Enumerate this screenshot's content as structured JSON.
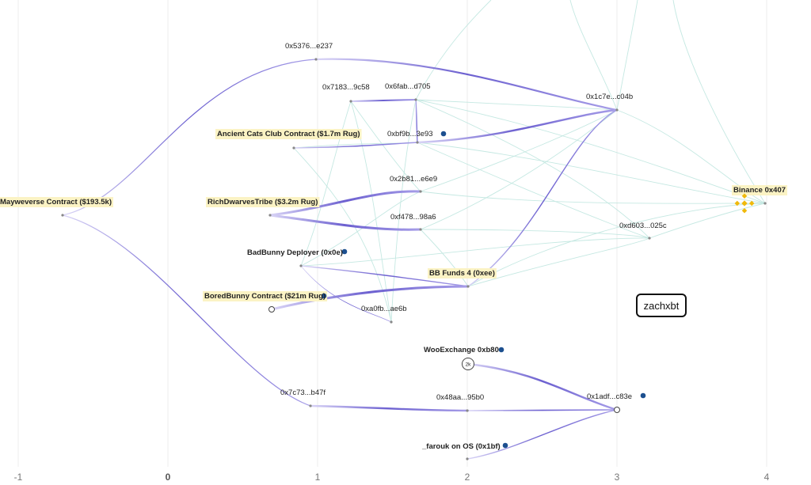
{
  "axis": {
    "ticks": [
      {
        "label": "-1",
        "bold": false
      },
      {
        "label": "0",
        "bold": true
      },
      {
        "label": "1",
        "bold": false
      },
      {
        "label": "2",
        "bold": false
      },
      {
        "label": "3",
        "bold": false
      },
      {
        "label": "4",
        "bold": false
      }
    ]
  },
  "watermark": "zachxbt",
  "colors": {
    "edge_main": "#7b6fd6",
    "edge_faint": "#b8e3dc",
    "highlight": "#fbf3c4",
    "marker": "#1c4f8f",
    "binance": "#f0b90b"
  },
  "nodes": [
    {
      "id": "mayweverse",
      "label": "Mayweverse Contract ($193.5k)",
      "highlight": true,
      "bold": true
    },
    {
      "id": "x5376",
      "label": "0x5376...e237"
    },
    {
      "id": "x7183",
      "label": "0x7183...9c58"
    },
    {
      "id": "x6fab",
      "label": "0x6fab...d705"
    },
    {
      "id": "ancient",
      "label": "Ancient Cats Club Contract ($1.7m Rug)",
      "highlight": true,
      "bold": true
    },
    {
      "id": "xbf9b",
      "label": "0xbf9b...3e93",
      "marker": true
    },
    {
      "id": "x2b81",
      "label": "0x2b81...e6e9"
    },
    {
      "id": "richdw",
      "label": "RichDwarvesTribe ($3.2m Rug)",
      "highlight": true,
      "bold": true
    },
    {
      "id": "xf478",
      "label": "0xf478...98a6"
    },
    {
      "id": "badbunny",
      "label": "BadBunny Deployer (0x0e)",
      "bold": true,
      "marker": true
    },
    {
      "id": "bbfunds",
      "label": "BB Funds 4 (0xee)",
      "highlight": true,
      "bold": true
    },
    {
      "id": "boredbunny",
      "label": "BoredBunny Contract ($21m Rug)",
      "highlight": true,
      "bold": true,
      "marker": true
    },
    {
      "id": "xa0fb",
      "label": "0xa0fb...ae6b"
    },
    {
      "id": "x1c7e",
      "label": "0x1c7e...c04b"
    },
    {
      "id": "xd603",
      "label": "0xd603...025c"
    },
    {
      "id": "binance",
      "label": "Binance 0x407",
      "highlight": true,
      "bold": true
    },
    {
      "id": "woo",
      "label": "WooExchange 0xb80",
      "bold": true,
      "marker": true,
      "badge": "2k"
    },
    {
      "id": "x7c73",
      "label": "0x7c73...b47f"
    },
    {
      "id": "x48aa",
      "label": "0x48aa...95b0"
    },
    {
      "id": "x1adf",
      "label": "0x1adf...c83e",
      "marker": true
    },
    {
      "id": "farouk",
      "label": "_farouk on OS (0x1bf)",
      "bold": true,
      "marker": true
    }
  ]
}
